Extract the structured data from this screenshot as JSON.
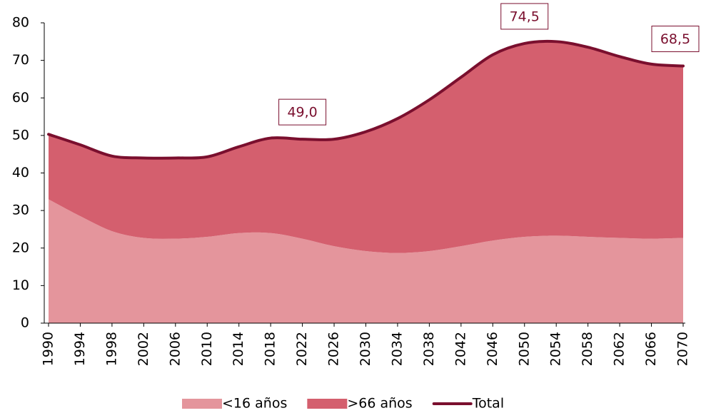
{
  "chart_data": {
    "type": "area",
    "stacked": true,
    "x": [
      1990,
      1994,
      1998,
      2002,
      2006,
      2010,
      2014,
      2018,
      2022,
      2026,
      2030,
      2034,
      2038,
      2042,
      2046,
      2050,
      2054,
      2058,
      2062,
      2066,
      2070
    ],
    "series": [
      {
        "name": "<16 años",
        "color": "#e4959c",
        "values": [
          33,
          28.5,
          24.5,
          22.7,
          22.5,
          23,
          24,
          24,
          22.5,
          20.5,
          19.2,
          18.7,
          19.2,
          20.5,
          22,
          23,
          23.3,
          23,
          22.7,
          22.5,
          22.7
        ]
      },
      {
        "name": ">66 años",
        "color": "#d45f6e",
        "values": [
          17.3,
          19,
          20,
          21.3,
          21.5,
          21.3,
          23,
          25.3,
          26.5,
          28.5,
          31.8,
          35.8,
          40.3,
          45,
          49.5,
          51.5,
          51.7,
          50.5,
          48.3,
          46.5,
          45.8
        ]
      },
      {
        "name": "Total",
        "color": "#7a0f2e",
        "type": "line",
        "values": [
          50.3,
          47.5,
          44.5,
          44,
          44,
          44.3,
          47,
          49.3,
          49,
          49,
          51,
          54.5,
          59.5,
          65.5,
          71.5,
          74.5,
          75,
          73.5,
          71,
          69,
          68.5
        ]
      }
    ],
    "annotations": [
      {
        "x": 2022,
        "value": 49.0,
        "label": "49,0"
      },
      {
        "x": 2050,
        "value": 74.5,
        "label": "74,5"
      },
      {
        "x": 2070,
        "value": 68.5,
        "label": "68,5"
      }
    ],
    "xlim": [
      1990,
      2070
    ],
    "xticks": [
      1990,
      1994,
      1998,
      2002,
      2006,
      2010,
      2014,
      2018,
      2022,
      2026,
      2030,
      2034,
      2038,
      2042,
      2046,
      2050,
      2054,
      2058,
      2062,
      2066,
      2070
    ],
    "ylim": [
      0,
      80
    ],
    "yticks": [
      0,
      10,
      20,
      30,
      40,
      50,
      60,
      70,
      80
    ],
    "legend": "bottom"
  }
}
